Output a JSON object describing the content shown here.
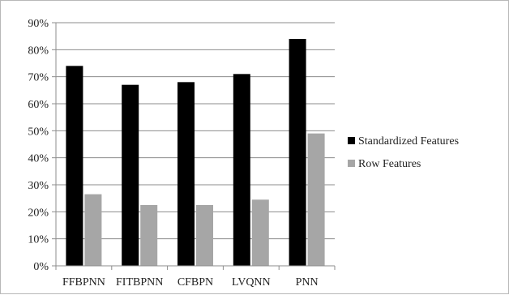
{
  "chart_data": {
    "type": "bar",
    "categories": [
      "FFBPNN",
      "FITBPNN",
      "CFBPN",
      "LVQNN",
      "PNN"
    ],
    "series": [
      {
        "name": "Standardized Features",
        "values": [
          74,
          67,
          68,
          71,
          84
        ],
        "color": "#000000"
      },
      {
        "name": "Row Features",
        "values": [
          26.5,
          22.5,
          22.5,
          24.5,
          49
        ],
        "color": "#a6a6a6"
      }
    ],
    "y_ticks": [
      "0%",
      "10%",
      "20%",
      "30%",
      "40%",
      "50%",
      "60%",
      "70%",
      "80%",
      "90%"
    ],
    "ylim": [
      0,
      90
    ],
    "grid": true,
    "legend_position": "right",
    "title": "",
    "xlabel": "",
    "ylabel": ""
  }
}
